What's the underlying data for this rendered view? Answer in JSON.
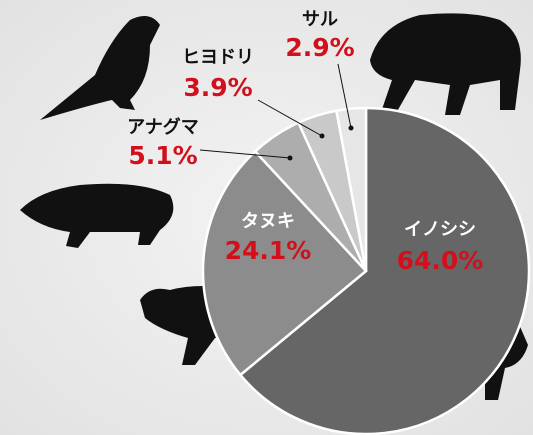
{
  "chart_data": {
    "type": "pie",
    "categories": [
      "イノシシ",
      "タヌキ",
      "アナグマ",
      "ヒヨドリ",
      "サル"
    ],
    "values": [
      64.0,
      24.1,
      5.1,
      3.9,
      2.9
    ],
    "value_labels": [
      "64.0%",
      "24.1%",
      "5.1%",
      "3.9%",
      "2.9%"
    ],
    "colors": [
      "#666666",
      "#8c8c8c",
      "#adadad",
      "#c9c9c9",
      "#e6e6e6"
    ]
  }
}
